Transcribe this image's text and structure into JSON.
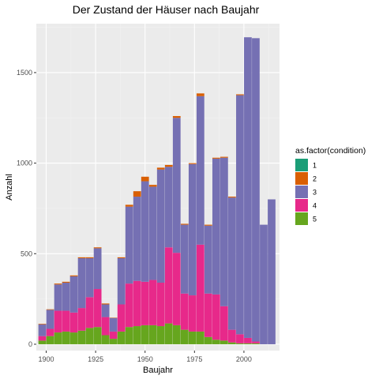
{
  "chart_data": {
    "type": "bar",
    "stacked": true,
    "title": "Der Zustand der Häuser nach Baujahr",
    "xlabel": "Baujahr",
    "ylabel": "Anzahl",
    "x_ticks": [
      1900,
      1925,
      1950,
      1975,
      2000
    ],
    "y_ticks": [
      0,
      500,
      1000,
      1500
    ],
    "xlim": [
      1895,
      2018
    ],
    "ylim": [
      -35,
      1770
    ],
    "bin_width": 3.9,
    "grid": true,
    "legend": {
      "title": "as.factor(condition)",
      "position": "right"
    },
    "bins": [
      1898,
      1902,
      1906,
      1910,
      1914,
      1918,
      1922,
      1926,
      1930,
      1934,
      1938,
      1942,
      1946,
      1950,
      1954,
      1958,
      1962,
      1966,
      1970,
      1974,
      1978,
      1982,
      1986,
      1990,
      1994,
      1998,
      2002,
      2006,
      2010,
      2014
    ],
    "series": [
      {
        "name": "5",
        "color": "#66A61E",
        "values": [
          20,
          45,
          65,
          70,
          65,
          75,
          90,
          95,
          50,
          30,
          70,
          95,
          100,
          105,
          105,
          100,
          115,
          105,
          80,
          70,
          70,
          40,
          25,
          20,
          10,
          5,
          5,
          5,
          0,
          0
        ]
      },
      {
        "name": "4",
        "color": "#E7298A",
        "values": [
          25,
          40,
          120,
          115,
          110,
          125,
          170,
          210,
          100,
          40,
          150,
          240,
          250,
          240,
          250,
          240,
          420,
          400,
          200,
          200,
          480,
          240,
          250,
          190,
          70,
          50,
          30,
          10,
          0,
          0
        ]
      },
      {
        "name": "3",
        "color": "#7570B3",
        "values": [
          65,
          105,
          145,
          155,
          200,
          275,
          215,
          225,
          70,
          75,
          255,
          425,
          465,
          555,
          515,
          625,
          445,
          745,
          380,
          725,
          820,
          375,
          750,
          820,
          730,
          1320,
          1660,
          1675,
          660,
          800
        ]
      },
      {
        "name": "2",
        "color": "#D95F02",
        "values": [
          3,
          3,
          5,
          5,
          5,
          5,
          5,
          5,
          5,
          2,
          5,
          10,
          30,
          25,
          10,
          10,
          10,
          10,
          5,
          5,
          15,
          5,
          5,
          5,
          5,
          5,
          0,
          0,
          0,
          0
        ]
      },
      {
        "name": "1",
        "color": "#1B9E77",
        "values": [
          0,
          0,
          0,
          0,
          0,
          0,
          0,
          0,
          0,
          0,
          0,
          0,
          0,
          0,
          0,
          0,
          0,
          0,
          0,
          0,
          0,
          0,
          0,
          0,
          0,
          0,
          0,
          0,
          0,
          0
        ]
      }
    ]
  },
  "style": {
    "panel_background": "#EBEBEB",
    "grid_major": "#FFFFFF",
    "grid_minor": "#F2F2F2"
  }
}
